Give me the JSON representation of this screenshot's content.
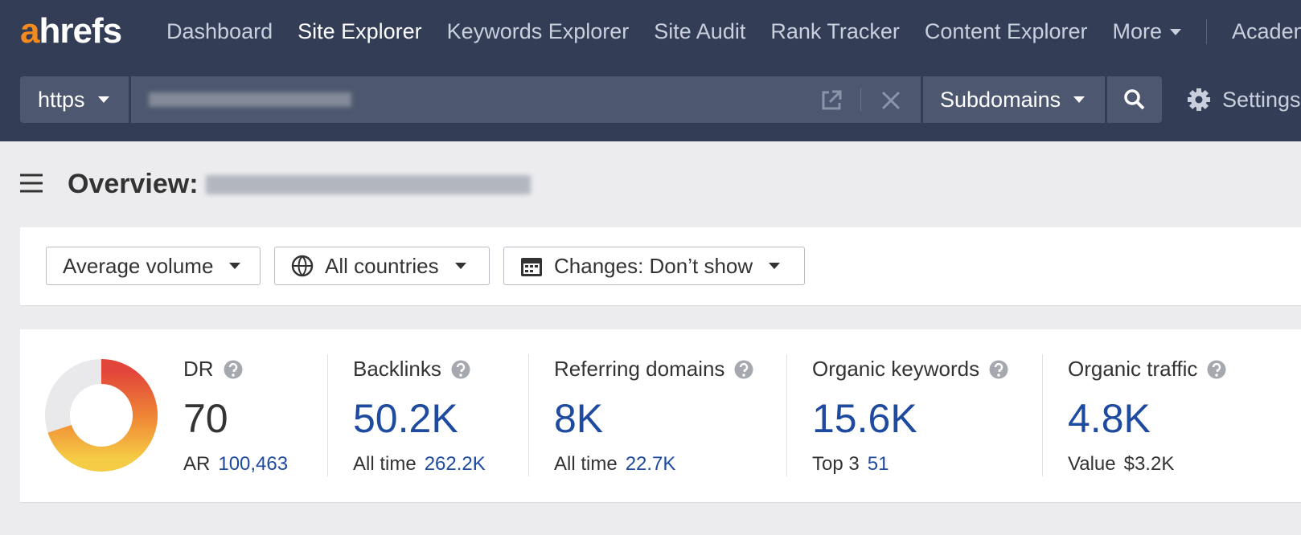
{
  "nav": {
    "logo": "ahrefs",
    "items": [
      "Dashboard",
      "Site Explorer",
      "Keywords Explorer",
      "Site Audit",
      "Rank Tracker",
      "Content Explorer",
      "More",
      "Academy"
    ],
    "active": 1
  },
  "search": {
    "protocol": "https",
    "mode": "Subdomains",
    "settings": "Settings"
  },
  "overview": {
    "title": "Overview:"
  },
  "filters": [
    "Average volume",
    "All countries",
    "Changes: Don’t show"
  ],
  "metrics": [
    {
      "label": "DR",
      "value": 70,
      "sub_label": "AR",
      "sub_value": "100,463",
      "gauge_lim": [
        0,
        100
      ]
    },
    {
      "label": "Backlinks",
      "value": "50.2K",
      "sub_label": "All time",
      "sub_value": "262.2K"
    },
    {
      "label": "Referring domains",
      "value": "8K",
      "sub_label": "All time",
      "sub_value": "22.7K"
    },
    {
      "label": "Organic keywords",
      "value": "15.6K",
      "sub_label": "Top 3",
      "sub_value": "51"
    },
    {
      "label": "Organic traffic",
      "value": "4.8K",
      "sub_label": "Value",
      "sub_value": "$3.2K"
    }
  ]
}
